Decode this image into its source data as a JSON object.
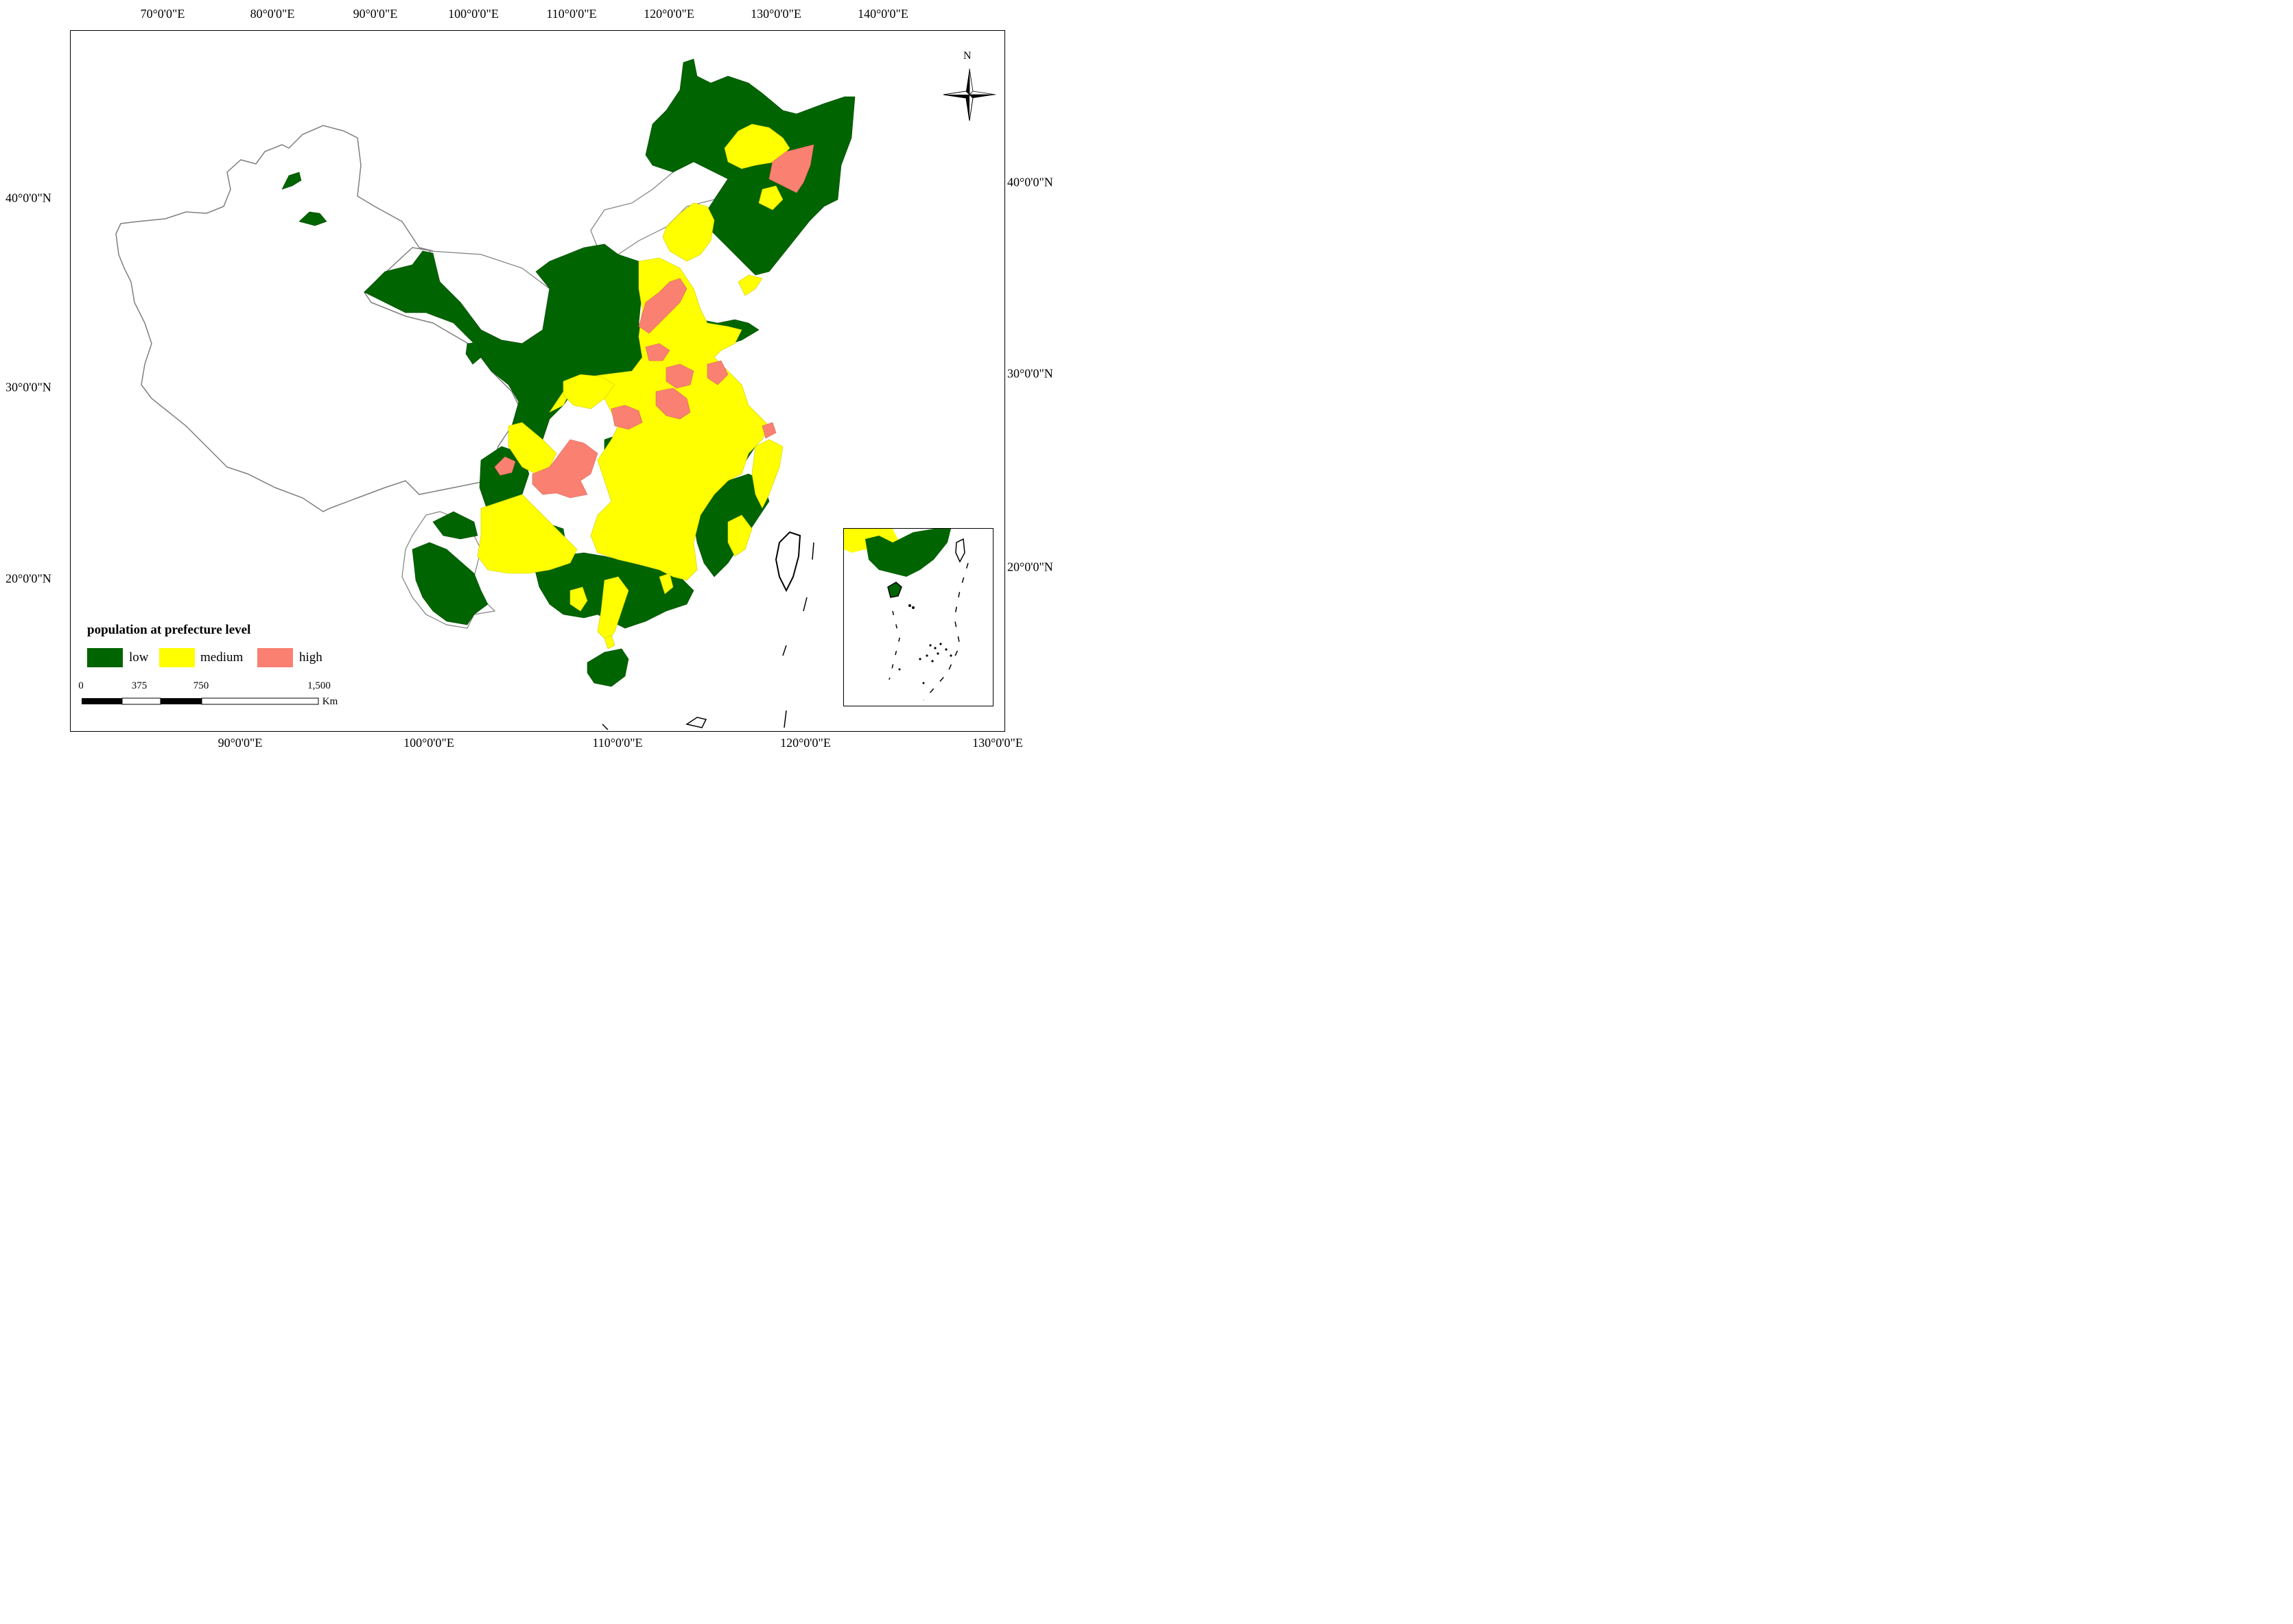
{
  "map": {
    "top_longitude_labels": [
      "70°0'0\"E",
      "80°0'0\"E",
      "90°0'0\"E",
      "100°0'0\"E",
      "110°0'0\"E",
      "120°0'0\"E",
      "130°0'0\"E",
      "140°0'0\"E"
    ],
    "bottom_longitude_labels": [
      "90°0'0\"E",
      "100°0'0\"E",
      "110°0'0\"E",
      "120°0'0\"E",
      "130°0'0\"E"
    ],
    "left_latitude_labels": [
      "40°0'0\"N",
      "30°0'0\"N",
      "20°0'0\"N"
    ],
    "right_latitude_labels": [
      "40°0'0\"N",
      "30°0'0\"N",
      "20°0'0\"N"
    ],
    "north_label": "N"
  },
  "legend": {
    "title": "population at prefecture level",
    "items": [
      {
        "label": "low",
        "color": "#006400"
      },
      {
        "label": "medium",
        "color": "#ffff00"
      },
      {
        "label": "high",
        "color": "#fa8072"
      }
    ]
  },
  "scale_bar": {
    "ticks": [
      "0",
      "375",
      "750",
      "1,500"
    ],
    "unit": "Km"
  },
  "colors": {
    "low": "#006400",
    "medium": "#ffff00",
    "high": "#fa8072",
    "boundary": "#7f7f7f"
  }
}
